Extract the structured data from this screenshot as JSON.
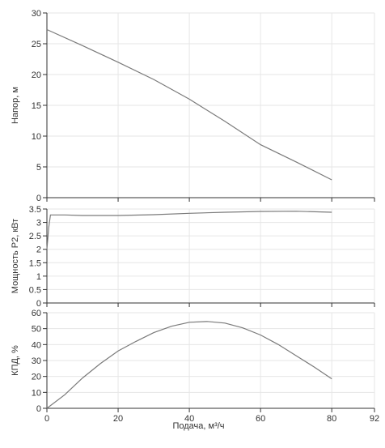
{
  "chart_data": [
    {
      "type": "line",
      "ylabel": "Напор, м",
      "xlim": [
        0,
        92
      ],
      "ylim": [
        0,
        30
      ],
      "xticks": [
        0,
        20,
        40,
        60,
        80,
        92
      ],
      "xtick_labels": [
        "",
        "",
        "",
        "",
        "",
        ""
      ],
      "yticks": [
        0,
        5,
        10,
        15,
        20,
        25,
        30
      ],
      "ytick_labels": [
        "0",
        "5",
        "10",
        "15",
        "20",
        "25",
        "30"
      ],
      "grid": true,
      "series": [
        {
          "x": [
            0,
            10,
            20,
            30,
            40,
            50,
            60,
            70,
            80
          ],
          "y": [
            27.3,
            24.7,
            22.0,
            19.2,
            16.0,
            12.4,
            8.6,
            5.8,
            2.9
          ]
        }
      ]
    },
    {
      "type": "line",
      "ylabel": "Мощность Р2, кВт",
      "xlim": [
        0,
        92
      ],
      "ylim": [
        0,
        3.5
      ],
      "xticks": [
        0,
        20,
        40,
        60,
        80,
        92
      ],
      "xtick_labels": [
        "",
        "",
        "",
        "",
        "",
        ""
      ],
      "yticks": [
        0,
        0.5,
        1,
        1.5,
        2,
        2.5,
        3,
        3.5
      ],
      "ytick_labels": [
        "0",
        "0.5",
        "1",
        "1.5",
        "2",
        "2.5",
        "3",
        "3.5"
      ],
      "grid": true,
      "series": [
        {
          "x": [
            0,
            0.5,
            1,
            5,
            10,
            20,
            30,
            40,
            50,
            60,
            70,
            80
          ],
          "y": [
            2.0,
            2.8,
            3.28,
            3.28,
            3.26,
            3.26,
            3.29,
            3.34,
            3.38,
            3.41,
            3.42,
            3.38
          ]
        }
      ]
    },
    {
      "type": "line",
      "ylabel": "КПД, %",
      "xlabel": "Подача, м³/ч",
      "xlim": [
        0,
        92
      ],
      "ylim": [
        0,
        60
      ],
      "xticks": [
        0,
        20,
        40,
        60,
        80,
        92
      ],
      "xtick_labels": [
        "0",
        "20",
        "40",
        "60",
        "80",
        "92"
      ],
      "yticks": [
        0,
        10,
        20,
        30,
        40,
        50,
        60
      ],
      "ytick_labels": [
        "0",
        "10",
        "20",
        "30",
        "40",
        "50",
        "60"
      ],
      "grid": true,
      "series": [
        {
          "x": [
            0,
            5,
            10,
            15,
            20,
            25,
            30,
            35,
            40,
            45,
            50,
            55,
            60,
            65,
            70,
            75,
            80
          ],
          "y": [
            0,
            8.5,
            19,
            28,
            36,
            42,
            47.5,
            51.5,
            54,
            54.5,
            53.5,
            50.5,
            46,
            40,
            33,
            26,
            18.5
          ]
        }
      ]
    }
  ]
}
